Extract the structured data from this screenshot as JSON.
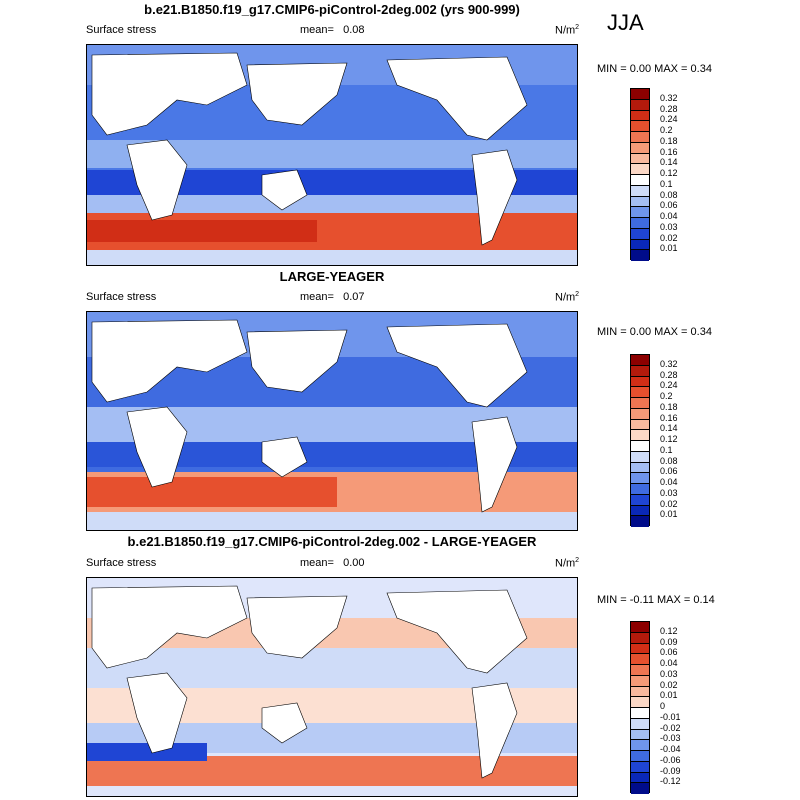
{
  "season": "JJA",
  "panels": [
    {
      "title": "b.e21.B1850.f19_g17.CMIP6-piControl-2deg.002 (yrs 900-999)",
      "left_label": "Surface stress",
      "mean_label": "mean=",
      "mean_value": "0.08",
      "units": "N/m",
      "units_sup": "2",
      "minmax": "MIN =   0.00 MAX =   0.34",
      "colorbar": {
        "labels": [
          "0.32",
          "0.28",
          "0.24",
          "0.2",
          "0.18",
          "0.16",
          "0.14",
          "0.12",
          "0.1",
          "0.08",
          "0.06",
          "0.04",
          "0.03",
          "0.02",
          "0.01"
        ],
        "colors": [
          "#8c0000",
          "#b31a0c",
          "#d12e16",
          "#e6502e",
          "#ee7552",
          "#f59a78",
          "#f9b99e",
          "#fcd8c6",
          "#ffffff",
          "#cfdcf8",
          "#a4bef3",
          "#6f95ec",
          "#3f6be0",
          "#1f45d4",
          "#0a28b8",
          "#000c8a"
        ]
      }
    },
    {
      "title": "LARGE-YEAGER",
      "left_label": "Surface stress",
      "mean_label": "mean=",
      "mean_value": "0.07",
      "units": "N/m",
      "units_sup": "2",
      "minmax": "MIN =   0.00 MAX =   0.34",
      "colorbar": {
        "labels": [
          "0.32",
          "0.28",
          "0.24",
          "0.2",
          "0.18",
          "0.16",
          "0.14",
          "0.12",
          "0.1",
          "0.08",
          "0.06",
          "0.04",
          "0.03",
          "0.02",
          "0.01"
        ],
        "colors": [
          "#8c0000",
          "#b31a0c",
          "#d12e16",
          "#e6502e",
          "#ee7552",
          "#f59a78",
          "#f9b99e",
          "#fcd8c6",
          "#ffffff",
          "#cfdcf8",
          "#a4bef3",
          "#6f95ec",
          "#3f6be0",
          "#1f45d4",
          "#0a28b8",
          "#000c8a"
        ]
      }
    },
    {
      "title": "b.e21.B1850.f19_g17.CMIP6-piControl-2deg.002 - LARGE-YEAGER",
      "left_label": "Surface stress",
      "mean_label": "mean=",
      "mean_value": "0.00",
      "units": "N/m",
      "units_sup": "2",
      "minmax": "MIN =  -0.11 MAX =   0.14",
      "colorbar": {
        "labels": [
          "0.12",
          "0.09",
          "0.06",
          "0.04",
          "0.03",
          "0.02",
          "0.01",
          "0",
          "-0.01",
          "-0.02",
          "-0.03",
          "-0.04",
          "-0.06",
          "-0.09",
          "-0.12"
        ],
        "colors": [
          "#8c0000",
          "#b31a0c",
          "#d12e16",
          "#e6502e",
          "#ee7552",
          "#f59a78",
          "#f9b99e",
          "#fcd8c6",
          "#ffffff",
          "#cfdcf8",
          "#a4bef3",
          "#6f95ec",
          "#3f6be0",
          "#1f45d4",
          "#0a28b8",
          "#000c8a"
        ]
      }
    }
  ]
}
